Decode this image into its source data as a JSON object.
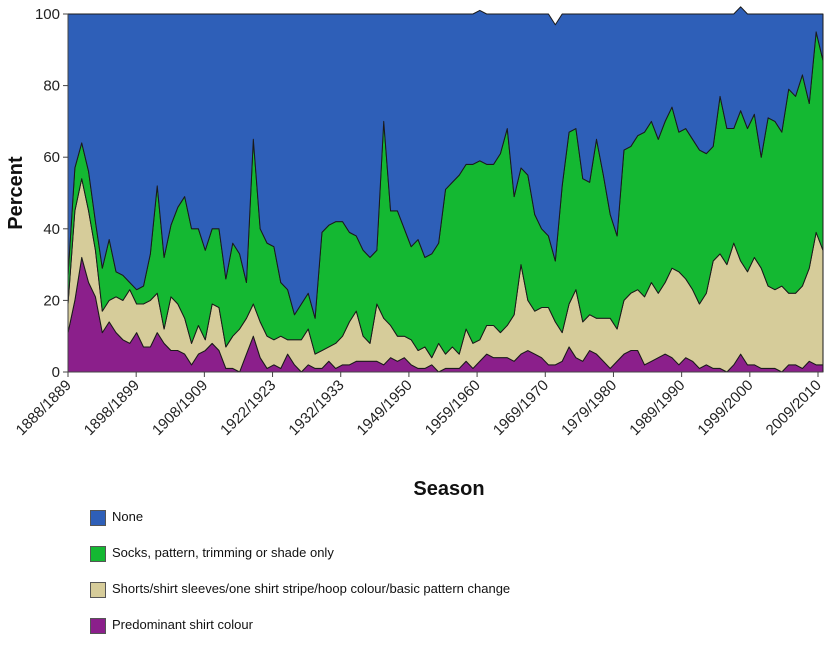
{
  "chart_data": {
    "type": "area",
    "stacked": true,
    "xlabel": "Season",
    "ylabel": "Percent",
    "ylim": [
      0,
      100
    ],
    "yticks": [
      0,
      20,
      40,
      60,
      80,
      100
    ],
    "xtick_labels": [
      "1888/1889",
      "1898/1899",
      "1908/1909",
      "1922/1923",
      "1932/1933",
      "1949/1950",
      "1959/1960",
      "1969/1970",
      "1979/1980",
      "1989/1990",
      "1999/2000",
      "2009/2010"
    ],
    "grid": false,
    "legend_position": "bottom",
    "series": [
      {
        "name": "Predominant shirt  colour",
        "color": "#8b1f8b",
        "values": [
          11,
          20,
          32,
          25,
          21,
          11,
          14,
          11,
          9,
          8,
          11,
          7,
          7,
          11,
          8,
          6,
          6,
          5,
          2,
          5,
          6,
          8,
          6,
          1,
          1,
          0,
          5,
          10,
          4,
          1,
          2,
          1,
          5,
          2,
          0,
          2,
          1,
          1,
          3,
          1,
          2,
          2,
          3,
          3,
          3,
          3,
          2,
          4,
          3,
          4,
          2,
          1,
          1,
          2,
          0,
          1,
          1,
          1,
          3,
          1,
          3,
          5,
          4,
          4,
          4,
          3,
          5,
          6,
          5,
          4,
          2,
          2,
          3,
          7,
          4,
          3,
          6,
          5,
          3,
          1,
          3,
          5,
          6,
          6,
          2,
          3,
          4,
          5,
          4,
          2,
          4,
          3,
          1,
          2,
          1,
          1,
          0,
          2,
          5,
          2,
          2,
          1,
          1,
          1,
          0,
          2,
          2,
          1,
          3,
          2,
          2
        ]
      },
      {
        "name": "Shorts/shirt  sleeves/one shirt  stripe/hoop colour/basic pattern change",
        "color": "#d6cc9a",
        "values": [
          8,
          25,
          22,
          20,
          13,
          6,
          6,
          10,
          11,
          15,
          8,
          12,
          13,
          11,
          4,
          15,
          13,
          10,
          6,
          8,
          3,
          11,
          12,
          6,
          9,
          12,
          10,
          9,
          10,
          9,
          7,
          9,
          4,
          7,
          9,
          10,
          4,
          5,
          4,
          7,
          8,
          12,
          14,
          7,
          5,
          16,
          13,
          9,
          7,
          6,
          7,
          5,
          6,
          2,
          8,
          4,
          6,
          4,
          9,
          7,
          6,
          8,
          9,
          7,
          9,
          13,
          25,
          14,
          12,
          14,
          16,
          12,
          8,
          12,
          19,
          11,
          10,
          10,
          12,
          14,
          9,
          15,
          16,
          17,
          19,
          22,
          18,
          20,
          25,
          26,
          22,
          20,
          18,
          20,
          30,
          32,
          30,
          34,
          26,
          26,
          30,
          28,
          23,
          22,
          24,
          20,
          20,
          23,
          26,
          37,
          32
        ]
      },
      {
        "name": "Socks, pattern, trimming or shade only",
        "color": "#14b832",
        "values": [
          8,
          12,
          10,
          11,
          8,
          12,
          17,
          7,
          7,
          2,
          4,
          5,
          13,
          30,
          20,
          20,
          27,
          34,
          32,
          27,
          25,
          21,
          22,
          19,
          26,
          21,
          10,
          46,
          26,
          26,
          26,
          15,
          14,
          7,
          10,
          10,
          10,
          33,
          34,
          34,
          32,
          25,
          21,
          24,
          24,
          15,
          55,
          32,
          35,
          30,
          26,
          31,
          25,
          29,
          28,
          46,
          46,
          50,
          46,
          50,
          50,
          45,
          45,
          50,
          55,
          33,
          27,
          35,
          27,
          22,
          20,
          17,
          41,
          48,
          45,
          40,
          37,
          50,
          40,
          29,
          26,
          42,
          41,
          43,
          46,
          45,
          43,
          45,
          45,
          39,
          42,
          42,
          43,
          39,
          32,
          44,
          38,
          32,
          42,
          40,
          40,
          31,
          47,
          47,
          43,
          57,
          55,
          59,
          46,
          56,
          53
        ]
      },
      {
        "name": "None",
        "color": "#2e5fb8",
        "values": [
          73,
          43,
          36,
          44,
          58,
          71,
          63,
          72,
          73,
          75,
          77,
          76,
          67,
          48,
          68,
          59,
          54,
          51,
          60,
          60,
          66,
          60,
          60,
          74,
          64,
          67,
          75,
          35,
          60,
          64,
          65,
          75,
          77,
          84,
          81,
          78,
          85,
          61,
          59,
          58,
          58,
          61,
          62,
          66,
          68,
          66,
          30,
          55,
          55,
          60,
          65,
          63,
          68,
          67,
          64,
          49,
          47,
          45,
          42,
          42,
          42,
          42,
          42,
          39,
          32,
          51,
          43,
          45,
          56,
          60,
          62,
          66,
          48,
          33,
          32,
          46,
          47,
          35,
          45,
          56,
          62,
          38,
          37,
          34,
          33,
          30,
          35,
          30,
          26,
          33,
          32,
          35,
          38,
          39,
          37,
          23,
          32,
          32,
          29,
          32,
          28,
          40,
          29,
          30,
          33,
          21,
          23,
          17,
          25,
          5,
          13
        ]
      }
    ]
  }
}
